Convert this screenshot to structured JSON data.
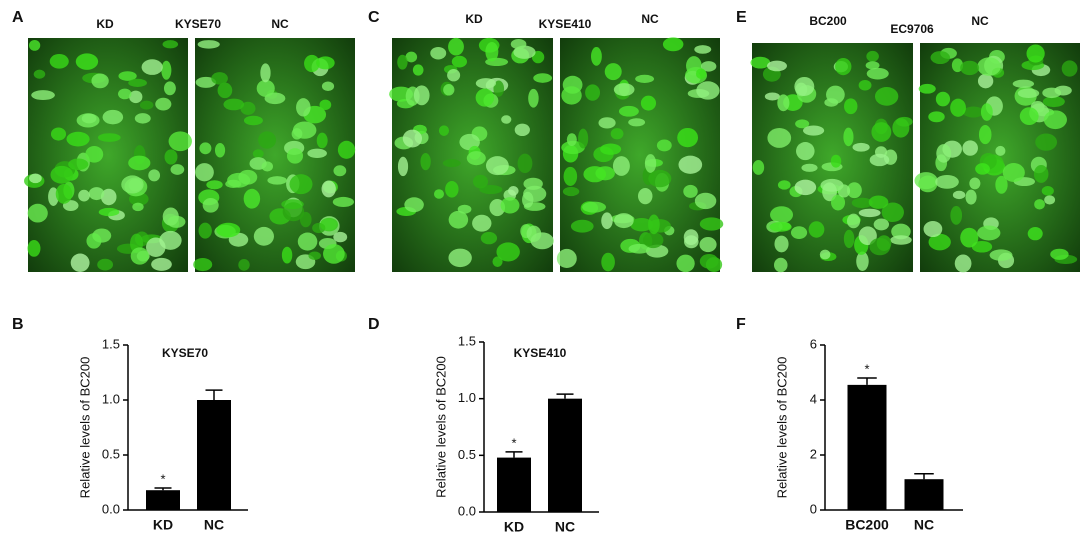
{
  "images": [
    {
      "panel": "A",
      "labels": [
        "KD",
        "KYSE70",
        "NC"
      ]
    },
    {
      "panel": "C",
      "labels": [
        "KD",
        "KYSE410",
        "NC"
      ]
    },
    {
      "panel": "E",
      "labels": [
        "BC200",
        "EC9706",
        "NC"
      ]
    }
  ],
  "chart_data": [
    {
      "type": "bar",
      "panel": "B",
      "title": "KYSE70",
      "ylabel": "Relative levels of BC200",
      "categories": [
        "KD",
        "NC"
      ],
      "values": [
        0.18,
        1.0
      ],
      "errors": [
        0.02,
        0.09
      ],
      "value_annotations": [
        "*",
        null
      ],
      "color": "#000000",
      "ylim": [
        0,
        1.5
      ],
      "yticks": [
        {
          "value": 0,
          "label": "0.0"
        },
        0.5,
        {
          "value": 1,
          "label": "1.0"
        },
        1.5
      ]
    },
    {
      "type": "bar",
      "panel": "D",
      "title": "KYSE410",
      "ylabel": "Relative levels of BC200",
      "categories": [
        "KD",
        "NC"
      ],
      "values": [
        0.48,
        1.0
      ],
      "errors": [
        0.05,
        0.04
      ],
      "value_annotations": [
        "*",
        null
      ],
      "color": "#000000",
      "ylim": [
        0,
        1.5
      ],
      "yticks": [
        {
          "value": 0,
          "label": "0.0"
        },
        0.5,
        {
          "value": 1,
          "label": "1.0"
        },
        1.5
      ]
    },
    {
      "type": "bar",
      "panel": "F",
      "ylabel": "Relative levels of BC200",
      "categories": [
        "BC200",
        "NC"
      ],
      "values": [
        4.55,
        1.12
      ],
      "errors": [
        0.25,
        0.2
      ],
      "value_annotations": [
        "*",
        null
      ],
      "color": "#000000",
      "ylim": [
        0,
        6
      ],
      "yticks": [
        0,
        2,
        4,
        6
      ]
    }
  ]
}
